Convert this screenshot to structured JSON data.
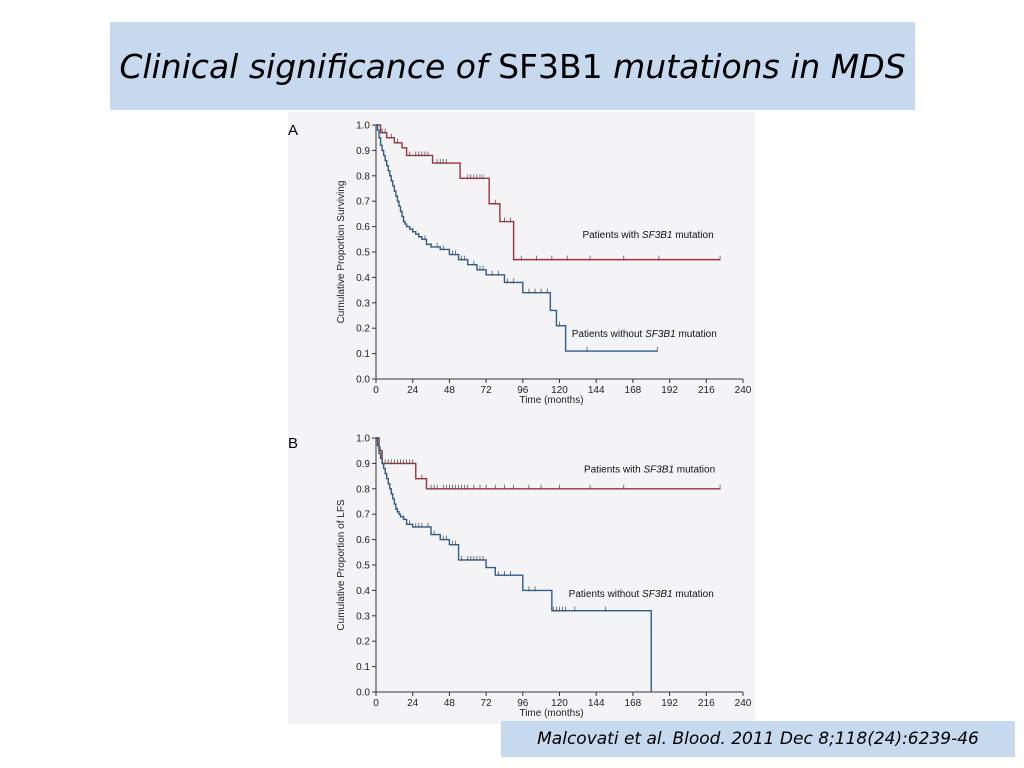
{
  "slide": {
    "title_pre": "Clinical significance of ",
    "title_gene": "SF3B1",
    "title_post": " mutations in MDS",
    "citation": "Malcovati et al. Blood. 2011 Dec 8;118(24):6239-46"
  },
  "chart_data": [
    {
      "panel": "A",
      "type": "line",
      "step": true,
      "xlabel": "Time (months)",
      "ylabel": "Cumulative Proportion Surviving",
      "xlim": [
        0,
        240
      ],
      "ylim": [
        0,
        1
      ],
      "xticks": [
        0,
        24,
        48,
        72,
        96,
        120,
        144,
        168,
        192,
        216,
        240
      ],
      "yticks": [
        0.0,
        0.1,
        0.2,
        0.3,
        0.4,
        0.5,
        0.6,
        0.7,
        0.8,
        0.9,
        1.0
      ],
      "colors": {
        "mutated": "#a0303a",
        "wildtype": "#2e5b8a"
      },
      "series": [
        {
          "key": "mutated",
          "label_pre": "Patients with ",
          "label_gene": "SF3B1",
          "label_post": " mutation",
          "label_at": [
            135,
            0.555
          ],
          "x": [
            0,
            3,
            7,
            12,
            17,
            20,
            37,
            55,
            74,
            81,
            90,
            225
          ],
          "y": [
            1.0,
            0.97,
            0.95,
            0.93,
            0.91,
            0.88,
            0.85,
            0.79,
            0.69,
            0.62,
            0.47,
            0.47
          ],
          "censor_x": [
            4,
            6,
            10,
            14,
            22,
            26,
            28,
            30,
            32,
            34,
            40,
            42,
            44,
            46,
            60,
            62,
            64,
            66,
            68,
            70,
            78,
            84,
            88,
            95,
            105,
            115,
            125,
            140,
            162,
            185,
            225
          ]
        },
        {
          "key": "wildtype",
          "label_pre": "Patients without ",
          "label_gene": "SF3B1",
          "label_post": " mutation",
          "label_at": [
            128,
            0.165
          ],
          "x": [
            0,
            1,
            2,
            3,
            4,
            5,
            6,
            7,
            8,
            9,
            10,
            11,
            12,
            13,
            14,
            15,
            16,
            17,
            18,
            19,
            20,
            22,
            24,
            26,
            28,
            30,
            33,
            36,
            42,
            48,
            54,
            60,
            66,
            72,
            84,
            96,
            114,
            118,
            124,
            184
          ],
          "y": [
            1.0,
            0.98,
            0.95,
            0.92,
            0.9,
            0.88,
            0.86,
            0.84,
            0.82,
            0.8,
            0.78,
            0.76,
            0.74,
            0.72,
            0.7,
            0.68,
            0.66,
            0.64,
            0.62,
            0.61,
            0.6,
            0.59,
            0.58,
            0.57,
            0.56,
            0.55,
            0.53,
            0.52,
            0.51,
            0.49,
            0.47,
            0.45,
            0.43,
            0.41,
            0.38,
            0.34,
            0.27,
            0.21,
            0.11,
            0.11
          ],
          "censor_x": [
            2,
            4,
            6,
            8,
            10,
            12,
            14,
            16,
            18,
            24,
            28,
            32,
            36,
            40,
            44,
            50,
            52,
            56,
            58,
            64,
            68,
            70,
            76,
            80,
            86,
            90,
            100,
            104,
            108,
            112,
            120,
            138,
            184
          ]
        }
      ]
    },
    {
      "panel": "B",
      "type": "line",
      "step": true,
      "xlabel": "Time (months)",
      "ylabel": "Cumulative Proportion of LFS",
      "xlim": [
        0,
        240
      ],
      "ylim": [
        0,
        1
      ],
      "xticks": [
        0,
        24,
        48,
        72,
        96,
        120,
        144,
        168,
        192,
        216,
        240
      ],
      "yticks": [
        0.0,
        0.1,
        0.2,
        0.3,
        0.4,
        0.5,
        0.6,
        0.7,
        0.8,
        0.9,
        1.0
      ],
      "colors": {
        "mutated": "#a0303a",
        "wildtype": "#2e5b8a"
      },
      "series": [
        {
          "key": "mutated",
          "label_pre": "Patients with ",
          "label_gene": "SF3B1",
          "label_post": " mutation",
          "label_at": [
            136,
            0.865
          ],
          "x": [
            0,
            2,
            4,
            26,
            33,
            225
          ],
          "y": [
            1.0,
            0.95,
            0.9,
            0.84,
            0.8,
            0.8
          ],
          "censor_x": [
            3,
            6,
            8,
            10,
            12,
            14,
            16,
            18,
            20,
            22,
            24,
            30,
            36,
            38,
            40,
            44,
            46,
            48,
            50,
            52,
            54,
            56,
            58,
            60,
            64,
            68,
            72,
            78,
            84,
            90,
            100,
            108,
            120,
            140,
            162,
            225
          ]
        },
        {
          "key": "wildtype",
          "label_pre": "Patients without ",
          "label_gene": "SF3B1",
          "label_post": " mutation",
          "label_at": [
            126,
            0.375
          ],
          "x": [
            0,
            1,
            2,
            3,
            4,
            5,
            6,
            7,
            8,
            9,
            10,
            11,
            12,
            13,
            14,
            15,
            16,
            18,
            20,
            24,
            36,
            42,
            48,
            54,
            72,
            78,
            96,
            115,
            180,
            180
          ],
          "y": [
            1.0,
            0.97,
            0.94,
            0.92,
            0.9,
            0.88,
            0.86,
            0.84,
            0.82,
            0.8,
            0.78,
            0.76,
            0.74,
            0.72,
            0.71,
            0.7,
            0.69,
            0.68,
            0.66,
            0.65,
            0.62,
            0.6,
            0.58,
            0.52,
            0.49,
            0.46,
            0.4,
            0.32,
            0.32,
            0.0
          ],
          "censor_x": [
            2,
            4,
            6,
            8,
            10,
            14,
            18,
            22,
            26,
            28,
            30,
            34,
            38,
            44,
            46,
            50,
            52,
            56,
            60,
            62,
            64,
            66,
            68,
            70,
            80,
            84,
            88,
            100,
            104,
            116,
            118,
            120,
            122,
            124,
            130,
            150
          ]
        }
      ]
    }
  ]
}
